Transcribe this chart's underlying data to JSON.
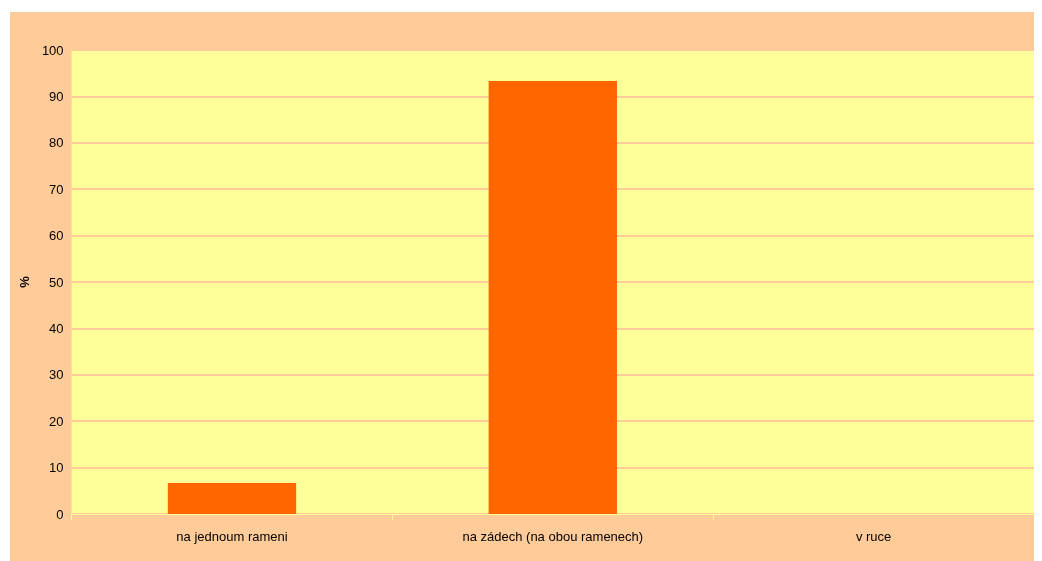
{
  "chart_data": {
    "type": "bar",
    "ylabel": "%",
    "categories": [
      "na jednoum rameni",
      "na zádech (na obou ramenech)",
      "v ruce"
    ],
    "values": [
      6.7,
      93.3,
      0
    ],
    "color": "#ff6600",
    "ylim": [
      0,
      100
    ],
    "yticks": [
      0,
      10,
      20,
      30,
      40,
      50,
      60,
      70,
      80,
      90,
      100
    ],
    "grid": "y"
  }
}
